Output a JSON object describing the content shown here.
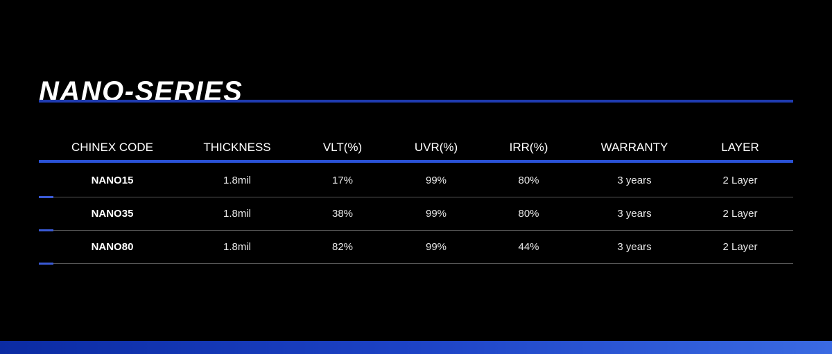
{
  "title": "NANO-SERIES",
  "colors": {
    "background": "#000000",
    "accent": "#2a52d6",
    "title_rule": "#1f3bb0"
  },
  "table": {
    "headers": [
      "CHINEX CODE",
      "THICKNESS",
      "VLT(%)",
      "UVR(%)",
      "IRR(%)",
      "WARRANTY",
      "LAYER"
    ],
    "rows": [
      [
        "NANO15",
        "1.8mil",
        "17%",
        "99%",
        "80%",
        "3 years",
        "2 Layer"
      ],
      [
        "NANO35",
        "1.8mil",
        "38%",
        "99%",
        "80%",
        "3 years",
        "2 Layer"
      ],
      [
        "NANO80",
        "1.8mil",
        "82%",
        "99%",
        "44%",
        "3 years",
        "2 Layer"
      ]
    ]
  }
}
